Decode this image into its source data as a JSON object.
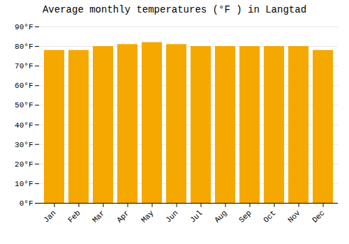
{
  "chart_data": {
    "type": "bar",
    "title": "Average monthly temperatures (°F ) in Langtad",
    "categories": [
      "Jan",
      "Feb",
      "Mar",
      "Apr",
      "May",
      "Jun",
      "Jul",
      "Aug",
      "Sep",
      "Oct",
      "Nov",
      "Dec"
    ],
    "values": [
      78,
      78,
      80,
      81,
      82,
      81,
      80,
      80,
      80,
      80,
      80,
      78
    ],
    "color": "#F5A800",
    "ylim": [
      0,
      90
    ],
    "yticks": [
      {
        "value": 0,
        "label": "0°F"
      },
      {
        "value": 10,
        "label": "10°F"
      },
      {
        "value": 20,
        "label": "20°F"
      },
      {
        "value": 30,
        "label": "30°F"
      },
      {
        "value": 40,
        "label": "40°F"
      },
      {
        "value": 50,
        "label": "50°F"
      },
      {
        "value": 60,
        "label": "60°F"
      },
      {
        "value": 70,
        "label": "70°F"
      },
      {
        "value": 80,
        "label": "80°F"
      },
      {
        "value": 90,
        "label": "90°F"
      }
    ],
    "grid": true
  }
}
